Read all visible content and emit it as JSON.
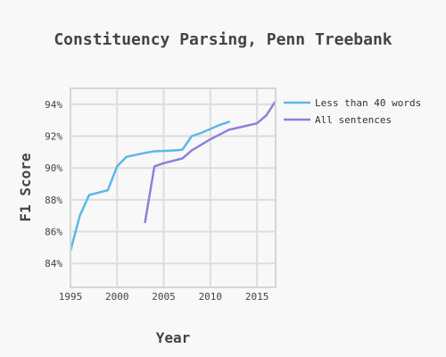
{
  "chart_data": {
    "type": "line",
    "title": "Constituency Parsing, Penn Treebank",
    "xlabel": "Year",
    "ylabel": "F1 Score",
    "xlim": [
      1995,
      2017
    ],
    "ylim": [
      82.5,
      95
    ],
    "xticks": [
      1995,
      2000,
      2005,
      2010,
      2015
    ],
    "xtick_labels": [
      "1995",
      "2000",
      "2005",
      "2010",
      "2015"
    ],
    "yticks": [
      84,
      86,
      88,
      90,
      92,
      94
    ],
    "ytick_labels": [
      "84%",
      "86%",
      "88%",
      "90%",
      "92%",
      "94%"
    ],
    "grid": true,
    "legend_position": "right",
    "series": [
      {
        "name": "Less than 40 words",
        "color": "#5bb8e8",
        "x": [
          1995,
          1996,
          1997,
          1999,
          2000,
          2001,
          2003,
          2004,
          2005,
          2006,
          2007,
          2008,
          2009,
          2010,
          2011,
          2012
        ],
        "y": [
          84.8,
          87.0,
          88.3,
          88.6,
          90.1,
          90.7,
          90.95,
          91.05,
          91.07,
          91.1,
          91.15,
          92.0,
          92.2,
          92.45,
          92.7,
          92.9
        ]
      },
      {
        "name": "All sentences",
        "color": "#8f7fdc",
        "x": [
          2003,
          2004,
          2005,
          2006,
          2007,
          2008,
          2009,
          2010,
          2011,
          2012,
          2015,
          2016,
          2017
        ],
        "y": [
          86.6,
          90.1,
          90.3,
          90.45,
          90.6,
          91.1,
          91.45,
          91.8,
          92.1,
          92.4,
          92.8,
          93.3,
          94.2
        ]
      }
    ]
  }
}
